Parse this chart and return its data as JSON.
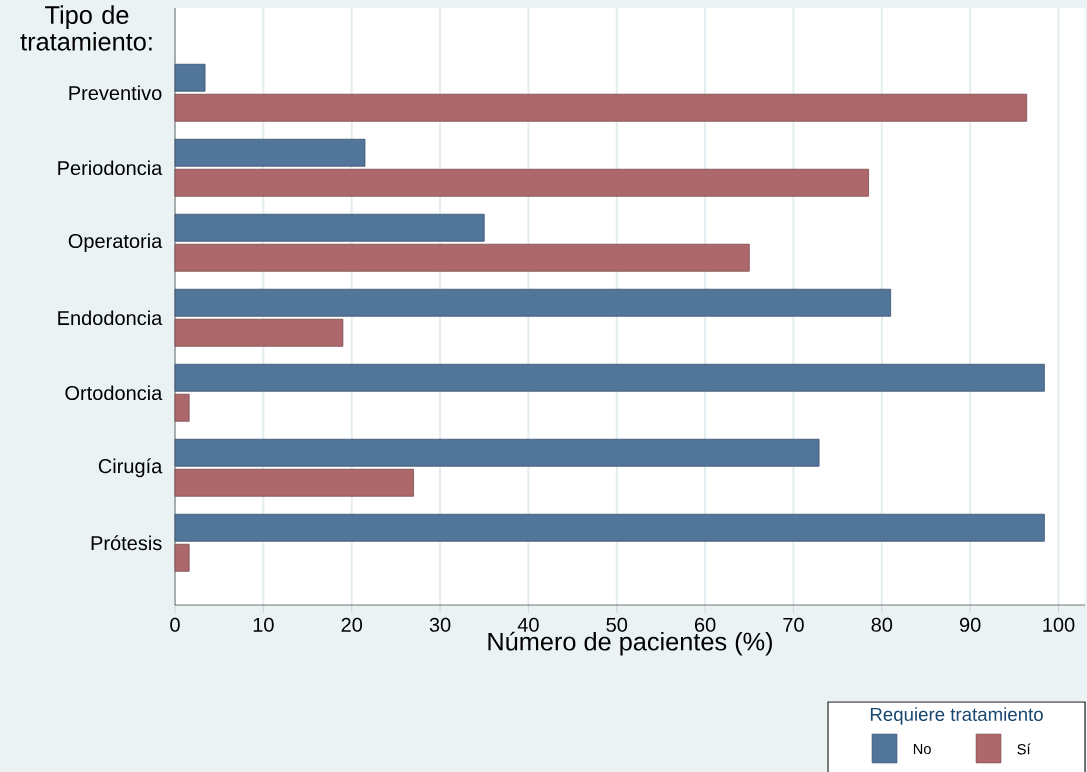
{
  "chart_data": {
    "type": "bar",
    "orientation": "horizontal",
    "ylabel": "Tipo de tratamiento:",
    "xlabel": "Número de pacientes (%)",
    "legend_title": "Requiere tratamiento",
    "categories": [
      "Preventivo",
      "Periodoncia",
      "Operatoria",
      "Endodoncia",
      "Ortodoncia",
      "Cirugía",
      "Prótesis"
    ],
    "series": [
      {
        "name": "No",
        "color": "#52759a",
        "values": [
          3.4,
          21.5,
          35.0,
          81.0,
          98.4,
          72.9,
          98.4
        ]
      },
      {
        "name": "Sí",
        "color": "#ad686b",
        "values": [
          96.4,
          78.5,
          65.0,
          19.0,
          1.6,
          27.0,
          1.6
        ]
      }
    ],
    "xlim": [
      0,
      103
    ],
    "xticks": [
      0,
      10,
      20,
      30,
      40,
      50,
      60,
      70,
      80,
      90,
      100
    ],
    "grid": "x",
    "legend": "bottom right"
  }
}
